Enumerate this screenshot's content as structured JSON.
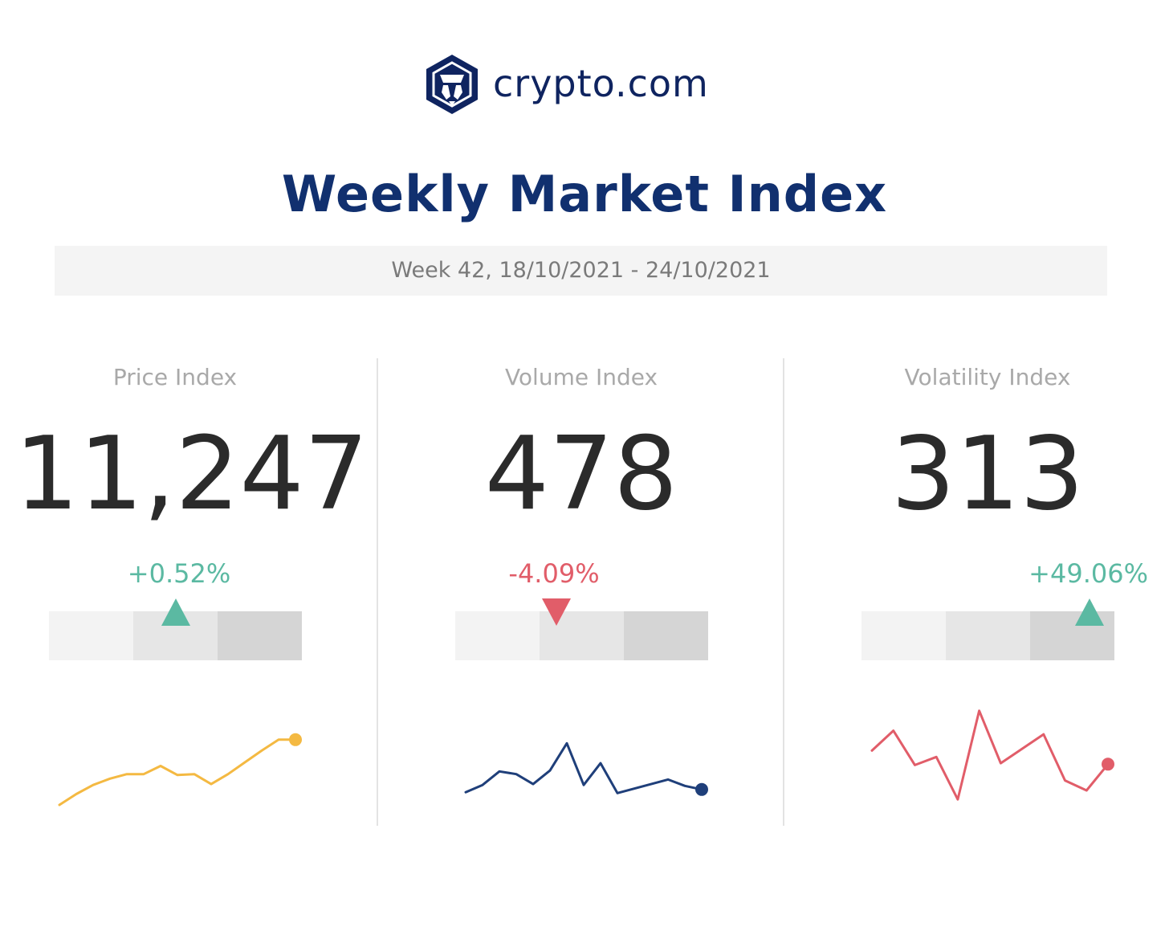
{
  "brand": {
    "logo_icon": "crypto-com-lion-hexagon",
    "name": "crypto.com",
    "color": "#0f2460"
  },
  "title": "Weekly Market Index",
  "subtitle": "Week 42, 18/10/2021 - 24/10/2021",
  "colors": {
    "title": "#11306f",
    "positive": "#5bb9a2",
    "negative": "#e15d69",
    "price_line": "#f4b942",
    "volume_line": "#1f3f7a",
    "volatility_line": "#e15d69"
  },
  "chart_data": [
    {
      "type": "line",
      "label": "Price Index",
      "value_text": "11,247",
      "change_text": "+0.52%",
      "direction": "up",
      "scale_position": 0.5,
      "y": [
        0,
        12,
        22,
        29,
        34,
        34,
        43,
        33,
        34,
        23,
        34,
        47,
        60,
        72,
        72
      ]
    },
    {
      "type": "line",
      "label": "Volume Index",
      "value_text": "478",
      "change_text": "-4.09%",
      "direction": "down",
      "scale_position": 0.4,
      "y": [
        14,
        22,
        37,
        34,
        23,
        38,
        68,
        22,
        46,
        13,
        18,
        23,
        28,
        21,
        17
      ]
    },
    {
      "type": "line",
      "label": "Volatility Index",
      "value_text": "313",
      "change_text": "+49.06%",
      "direction": "up",
      "scale_position": 0.9,
      "y": [
        60,
        82,
        44,
        53,
        6,
        104,
        46,
        62,
        78,
        27,
        16,
        45
      ]
    }
  ]
}
